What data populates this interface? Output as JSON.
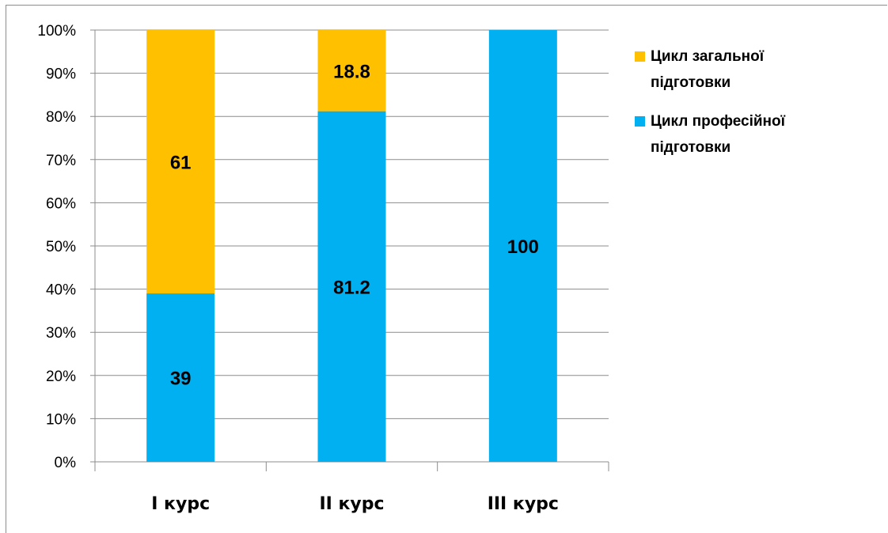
{
  "chart_data": {
    "type": "bar",
    "stacked": true,
    "percent_stacked": true,
    "categories": [
      "I курс",
      "II курс",
      "III курс"
    ],
    "series": [
      {
        "name": "Цикл професійної підготовки",
        "values": [
          39,
          81.2,
          100
        ],
        "color": "#00B0F0"
      },
      {
        "name": "Цикл загальної підготовки",
        "values": [
          61,
          18.8,
          0
        ],
        "color": "#FFC000"
      }
    ],
    "y_ticks": [
      "0%",
      "10%",
      "20%",
      "30%",
      "40%",
      "50%",
      "60%",
      "70%",
      "80%",
      "90%",
      "100%"
    ],
    "ylim": [
      0,
      100
    ],
    "grid": true,
    "legend_placement": "right",
    "legend": [
      {
        "lines": [
          "Цикл загальної",
          "підготовки"
        ],
        "color": "#FFC000"
      },
      {
        "lines": [
          "Цикл професійної",
          "підготовки"
        ],
        "color": "#00B0F0"
      }
    ]
  }
}
